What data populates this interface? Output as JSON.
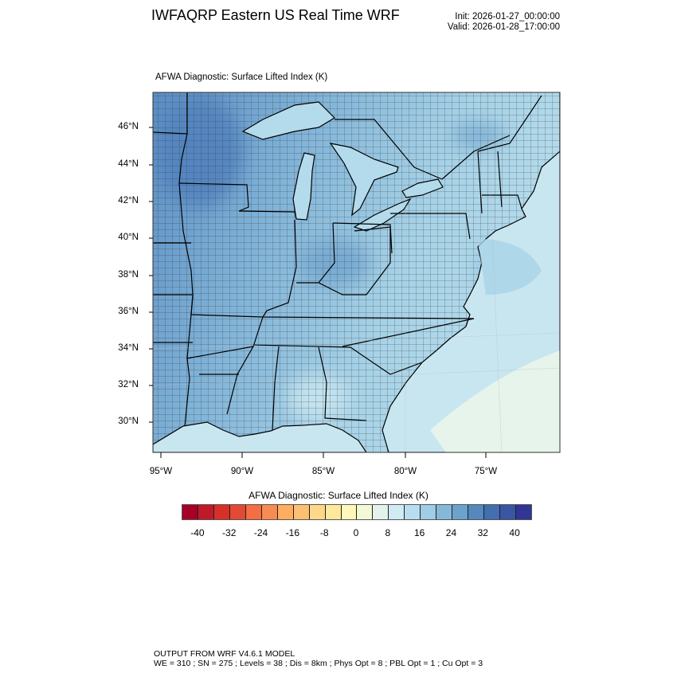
{
  "header": {
    "title": "IWFAQRP Eastern US Real Time WRF",
    "init": "Init: 2026-01-27_00:00:00",
    "valid": "Valid: 2026-01-28_17:00:00"
  },
  "map": {
    "subtitle": "AFWA Diagnostic: Surface Lifted Index   (K)",
    "lat_labels": [
      "46°N",
      "44°N",
      "42°N",
      "40°N",
      "38°N",
      "36°N",
      "34°N",
      "32°N",
      "30°N"
    ],
    "lon_labels": [
      "95°W",
      "90°W",
      "85°W",
      "80°W",
      "75°W"
    ],
    "colors": {
      "dark": "#5b8dc4",
      "mid": "#86b8da",
      "light": "#aad4e8",
      "ocean": "#c8e6f0",
      "pale": "#e9f5ea"
    }
  },
  "colorbar": {
    "title": "AFWA Diagnostic: Surface Lifted Index  (K)",
    "labels": [
      "-40",
      "-32",
      "-24",
      "-16",
      "-8",
      "0",
      "8",
      "16",
      "24",
      "32",
      "40"
    ],
    "colors": [
      "#a50026",
      "#bf1a2b",
      "#d73027",
      "#e34a33",
      "#f46d43",
      "#f88b51",
      "#fdae61",
      "#fdbf71",
      "#fed889",
      "#fee89a",
      "#fff8b8",
      "#f2f9d5",
      "#e3f3ec",
      "#d0ebf3",
      "#b8ddee",
      "#9fcde3",
      "#84b9d8",
      "#6ba3cc",
      "#5588bd",
      "#416fb0",
      "#3a55a3",
      "#313695"
    ]
  },
  "footer": {
    "line1": "OUTPUT FROM WRF V4.6.1 MODEL",
    "line2": "WE = 310 ; SN = 275 ; Levels = 38 ; Dis = 8km ; Phys Opt = 8 ; PBL Opt = 1 ; Cu Opt = 3"
  }
}
